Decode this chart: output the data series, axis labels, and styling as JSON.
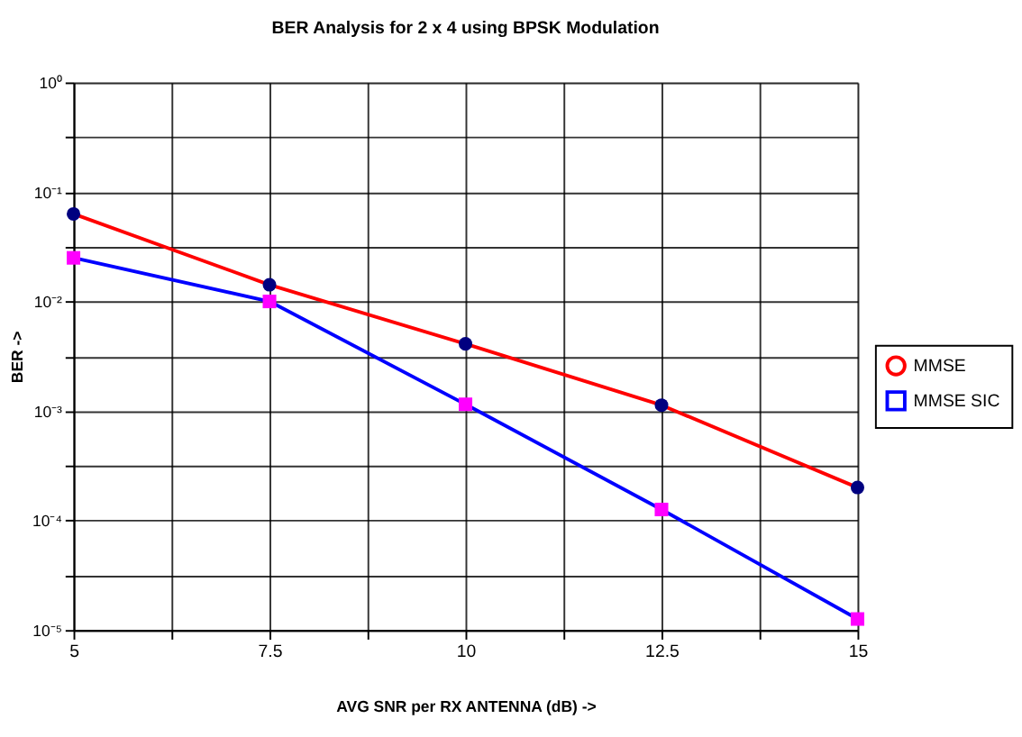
{
  "chart_data": {
    "type": "line",
    "title": "BER Analysis for 2 x 4 using BPSK Modulation",
    "xlabel": "AVG SNR per RX ANTENNA (dB) ->",
    "ylabel": "BER ->",
    "x": [
      5,
      7.5,
      10,
      12.5,
      15
    ],
    "series": [
      {
        "name": "MMSE",
        "color": "#ff0000",
        "marker": "circle",
        "colors": [
          "#000080",
          "#000080",
          "#000080",
          "#000080",
          "#000080"
        ],
        "values": [
          0.063,
          0.0142,
          0.0041,
          0.00113,
          0.0002
        ]
      },
      {
        "name": "MMSE SIC",
        "color": "#0000ff",
        "marker": "square",
        "colors": [
          "#ff00ff",
          "#ff00ff",
          "#ff00ff",
          "#ff00ff",
          "#ff00ff"
        ],
        "values": [
          0.025,
          0.01,
          0.00115,
          0.000126,
          1.26e-05
        ]
      }
    ],
    "log": "y",
    "xlim": [
      5,
      15
    ],
    "ylim": [
      1e-05,
      1
    ],
    "xticks": [
      5,
      {
        "value": 6.25,
        "label": null
      },
      7.5,
      {
        "value": 8.75,
        "label": null
      },
      10,
      {
        "value": 11.25,
        "label": null
      },
      12.5,
      {
        "value": 13.75,
        "label": null
      },
      15
    ],
    "yticks": [
      {
        "value": 1e-05,
        "label": "10⁻⁵"
      },
      {
        "value": 3.16e-05,
        "label": null
      },
      {
        "value": 0.0001,
        "label": "10⁻⁴"
      },
      {
        "value": 0.000316,
        "label": null
      },
      {
        "value": 0.001,
        "label": "10⁻³"
      },
      {
        "value": 0.00316,
        "label": null
      },
      {
        "value": 0.01,
        "label": "10⁻²"
      },
      {
        "value": 0.0316,
        "label": null
      },
      {
        "value": 0.1,
        "label": "10⁻¹"
      },
      {
        "value": 0.316,
        "label": null
      },
      {
        "value": 1,
        "label": "10⁰"
      }
    ],
    "grid": true,
    "legend": "right",
    "line_style": "solid"
  }
}
